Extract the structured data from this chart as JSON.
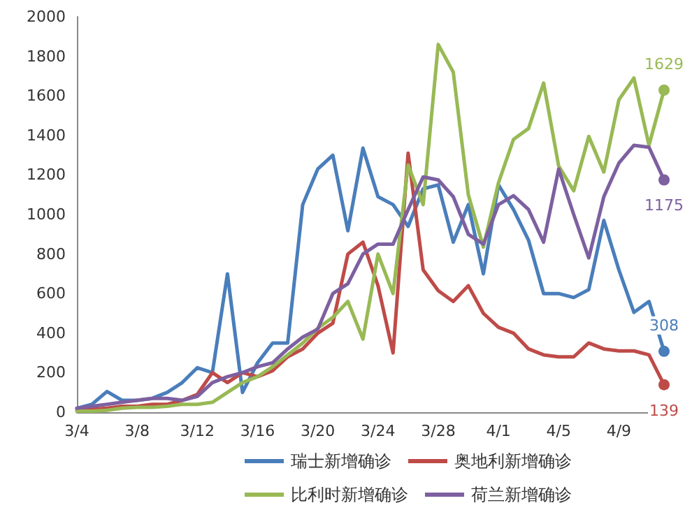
{
  "chart_data": {
    "type": "line",
    "categories": [
      "3/4",
      null,
      null,
      null,
      "3/8",
      null,
      null,
      null,
      "3/12",
      null,
      null,
      null,
      "3/16",
      null,
      null,
      null,
      "3/20",
      null,
      null,
      null,
      "3/24",
      null,
      null,
      null,
      "3/28",
      null,
      null,
      null,
      "4/1",
      null,
      null,
      null,
      "4/5",
      null,
      null,
      null,
      "4/9",
      null,
      null,
      null
    ],
    "ylim": [
      0,
      2000
    ],
    "yticks": [
      0,
      200,
      400,
      600,
      800,
      1000,
      1200,
      1400,
      1600,
      1800,
      2000
    ],
    "grid": false,
    "legend": "bottom",
    "series": [
      {
        "name": "瑞士新增确诊",
        "color": "#4a7ebb",
        "values": [
          20,
          40,
          105,
          60,
          60,
          70,
          100,
          150,
          225,
          200,
          700,
          100,
          250,
          350,
          350,
          1050,
          1230,
          1300,
          918,
          1336,
          1090,
          1050,
          940,
          1130,
          1150,
          860,
          1050,
          700,
          1150,
          1025,
          870,
          600,
          600,
          580,
          620,
          970,
          720,
          505,
          560,
          308
        ],
        "value_labels": [
          null,
          null,
          null,
          null,
          null,
          null,
          null,
          null,
          null,
          null,
          null,
          null,
          null,
          null,
          null,
          null,
          null,
          null,
          null,
          null,
          null,
          null,
          null,
          null,
          null,
          null,
          null,
          null,
          null,
          null,
          null,
          null,
          null,
          null,
          null,
          null,
          null,
          null,
          null,
          "308"
        ]
      },
      {
        "name": "奥地利新增确诊",
        "color": "#be4b48",
        "values": [
          10,
          15,
          20,
          30,
          30,
          40,
          40,
          60,
          90,
          200,
          150,
          200,
          180,
          210,
          280,
          320,
          400,
          450,
          800,
          860,
          640,
          300,
          1310,
          720,
          615,
          560,
          640,
          500,
          430,
          400,
          320,
          290,
          280,
          280,
          350,
          320,
          310,
          310,
          290,
          139
        ],
        "value_labels": [
          null,
          null,
          null,
          null,
          null,
          null,
          null,
          null,
          null,
          null,
          null,
          null,
          null,
          null,
          null,
          null,
          null,
          null,
          null,
          null,
          null,
          null,
          null,
          null,
          null,
          null,
          null,
          null,
          null,
          null,
          null,
          null,
          null,
          null,
          null,
          null,
          null,
          null,
          null,
          "139"
        ]
      },
      {
        "name": "比利时新增确诊",
        "color": "#98b954",
        "values": [
          5,
          5,
          10,
          20,
          25,
          25,
          30,
          40,
          40,
          50,
          100,
          150,
          180,
          230,
          290,
          350,
          425,
          480,
          560,
          370,
          800,
          600,
          1250,
          1050,
          1860,
          1720,
          1100,
          835,
          1160,
          1380,
          1435,
          1665,
          1245,
          1120,
          1395,
          1215,
          1580,
          1690,
          1350,
          1629
        ],
        "value_labels": [
          null,
          null,
          null,
          null,
          null,
          null,
          null,
          null,
          null,
          null,
          null,
          null,
          null,
          null,
          null,
          null,
          null,
          null,
          null,
          null,
          null,
          null,
          null,
          null,
          null,
          null,
          null,
          null,
          null,
          null,
          null,
          null,
          null,
          null,
          null,
          null,
          null,
          null,
          null,
          "1629"
        ]
      },
      {
        "name": "荷兰新增确诊",
        "color": "#7d60a0",
        "values": [
          20,
          30,
          40,
          50,
          60,
          70,
          70,
          60,
          80,
          150,
          180,
          200,
          230,
          250,
          320,
          380,
          420,
          600,
          650,
          800,
          850,
          850,
          1025,
          1190,
          1175,
          1090,
          900,
          850,
          1050,
          1095,
          1025,
          860,
          1230,
          1000,
          780,
          1090,
          1260,
          1350,
          1340,
          1175
        ],
        "value_labels": [
          null,
          null,
          null,
          null,
          null,
          null,
          null,
          null,
          null,
          null,
          null,
          null,
          null,
          null,
          null,
          null,
          null,
          null,
          null,
          null,
          null,
          null,
          null,
          null,
          null,
          null,
          null,
          null,
          null,
          null,
          null,
          null,
          null,
          null,
          null,
          null,
          null,
          null,
          null,
          "1175"
        ]
      }
    ]
  }
}
